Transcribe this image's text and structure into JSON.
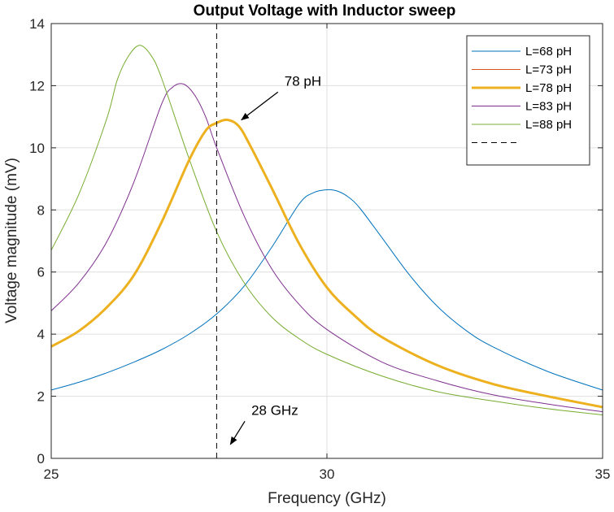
{
  "chart_data": {
    "type": "line",
    "title": "Output Voltage with Inductor sweep",
    "xlabel": "Frequency (GHz)",
    "ylabel": "Voltage magnitude (mV)",
    "xlim": [
      25,
      35
    ],
    "ylim": [
      0,
      14
    ],
    "xticks": [
      25,
      30,
      35
    ],
    "yticks": [
      0,
      2,
      4,
      6,
      8,
      10,
      12,
      14
    ],
    "grid": true,
    "legend_position": "top-right",
    "series": [
      {
        "name": "L=68 pH",
        "color": "#0072BD",
        "width": 1,
        "x": [
          25,
          25.5,
          26,
          26.5,
          27,
          27.5,
          28,
          28.5,
          29,
          29.5,
          29.75,
          30,
          30.2,
          30.4,
          30.6,
          31,
          31.5,
          32,
          32.5,
          33,
          34,
          35
        ],
        "y": [
          2.2,
          2.45,
          2.75,
          3.1,
          3.5,
          4.0,
          4.65,
          5.55,
          6.8,
          8.2,
          8.55,
          8.65,
          8.6,
          8.4,
          8.05,
          7.1,
          5.9,
          4.9,
          4.15,
          3.6,
          2.8,
          2.2
        ]
      },
      {
        "name": "L=73 pH",
        "color": "#D95319",
        "width": 1,
        "x": [],
        "y": []
      },
      {
        "name": "L=78 pH",
        "color": "#EDB120",
        "width": 3,
        "x": [
          25,
          25.5,
          26,
          26.5,
          27,
          27.5,
          27.8,
          28,
          28.2,
          28.4,
          28.6,
          29,
          29.5,
          30,
          30.5,
          31,
          32,
          33,
          34,
          35
        ],
        "y": [
          3.6,
          4.1,
          4.85,
          5.9,
          7.6,
          9.6,
          10.55,
          10.8,
          10.9,
          10.7,
          10.1,
          8.7,
          6.9,
          5.5,
          4.6,
          3.9,
          3.0,
          2.4,
          2.0,
          1.65
        ]
      },
      {
        "name": "L=83 pH",
        "color": "#7E2F8E",
        "width": 1,
        "x": [
          25,
          25.5,
          26,
          26.5,
          27,
          27.2,
          27.4,
          27.6,
          27.8,
          28,
          28.5,
          29,
          29.5,
          30,
          31,
          32,
          33,
          34,
          35
        ],
        "y": [
          4.75,
          5.65,
          6.95,
          8.9,
          11.4,
          11.95,
          12.05,
          11.7,
          11.0,
          10.0,
          7.8,
          6.1,
          4.95,
          4.15,
          3.1,
          2.5,
          2.05,
          1.75,
          1.5
        ]
      },
      {
        "name": "L=88 pH",
        "color": "#77AC30",
        "width": 1,
        "x": [
          25,
          25.5,
          26,
          26.2,
          26.4,
          26.6,
          26.8,
          27,
          27.5,
          28,
          28.5,
          29,
          29.5,
          30,
          31,
          32,
          33,
          34,
          35
        ],
        "y": [
          6.7,
          8.5,
          10.9,
          12.2,
          12.95,
          13.3,
          13.0,
          12.25,
          9.65,
          7.3,
          5.65,
          4.55,
          3.85,
          3.35,
          2.65,
          2.15,
          1.85,
          1.6,
          1.4
        ]
      },
      {
        "name": "",
        "color": "#000000",
        "width": 1,
        "dash": true,
        "x": [
          28,
          28
        ],
        "y": [
          0,
          14
        ]
      }
    ],
    "annotations": [
      {
        "text": "78 pH",
        "arrow_to": [
          28.45,
          10.9
        ],
        "text_at": [
          29.2,
          11.9
        ]
      },
      {
        "text": "28 GHz",
        "arrow_to": [
          28.25,
          0.45
        ],
        "text_at": [
          28.6,
          1.3
        ]
      }
    ]
  }
}
